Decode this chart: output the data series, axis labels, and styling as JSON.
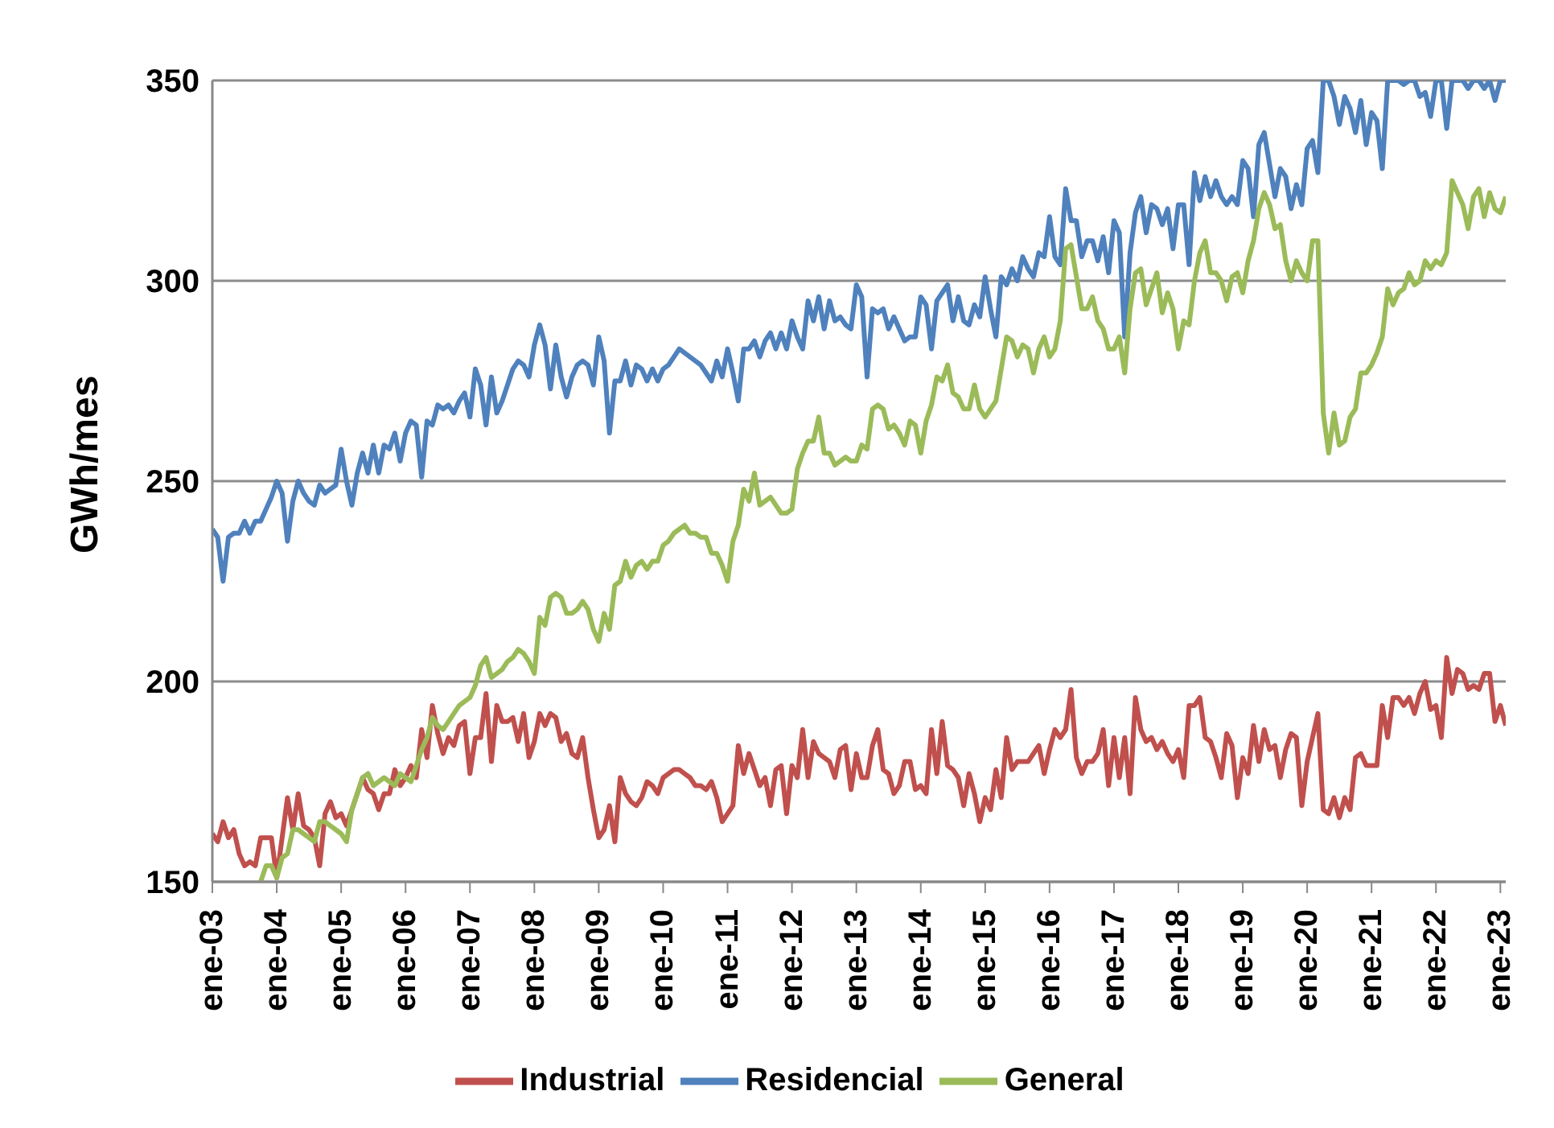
{
  "chart_data": {
    "type": "line",
    "ylabel": "GWh/mes",
    "legend": "bottom",
    "grid": "y",
    "marker": "none",
    "line_style": "solid",
    "xlim": [
      "2003-01",
      "2023-02"
    ],
    "ylim": [
      150,
      350
    ],
    "yticks": [
      150,
      200,
      250,
      300,
      350
    ],
    "xticks": [
      {
        "value": "2003-01",
        "label": "ene-03"
      },
      {
        "value": "2004-01",
        "label": "ene-04"
      },
      {
        "value": "2005-01",
        "label": "ene-05"
      },
      {
        "value": "2006-01",
        "label": "ene-06"
      },
      {
        "value": "2007-01",
        "label": "ene-07"
      },
      {
        "value": "2008-01",
        "label": "ene-08"
      },
      {
        "value": "2009-01",
        "label": "ene-09"
      },
      {
        "value": "2010-01",
        "label": "ene-10"
      },
      {
        "value": "2011-01",
        "label": "ene-11"
      },
      {
        "value": "2012-01",
        "label": "ene-12"
      },
      {
        "value": "2013-01",
        "label": "ene-13"
      },
      {
        "value": "2014-01",
        "label": "ene-14"
      },
      {
        "value": "2015-01",
        "label": "ene-15"
      },
      {
        "value": "2016-01",
        "label": "ene-16"
      },
      {
        "value": "2017-01",
        "label": "ene-17"
      },
      {
        "value": "2018-01",
        "label": "ene-18"
      },
      {
        "value": "2019-01",
        "label": "ene-19"
      },
      {
        "value": "2020-01",
        "label": "ene-20"
      },
      {
        "value": "2021-01",
        "label": "ene-21"
      },
      {
        "value": "2022-01",
        "label": "ene-22"
      },
      {
        "value": "2023-01",
        "label": "ene-23"
      }
    ],
    "x": [
      "2003-01",
      "2003-02",
      "2003-03",
      "2003-04",
      "2003-05",
      "2003-06",
      "2003-07",
      "2003-08",
      "2003-09",
      "2003-10",
      "2003-11",
      "2003-12",
      "2004-01",
      "2004-02",
      "2004-03",
      "2004-04",
      "2004-05",
      "2004-06",
      "2004-07",
      "2004-08",
      "2004-09",
      "2004-10",
      "2004-11",
      "2004-12",
      "2005-01",
      "2005-02",
      "2005-03",
      "2005-04",
      "2005-05",
      "2005-06",
      "2005-07",
      "2005-08",
      "2005-09",
      "2005-10",
      "2005-11",
      "2005-12",
      "2006-01",
      "2006-02",
      "2006-03",
      "2006-04",
      "2006-05",
      "2006-06",
      "2006-07",
      "2006-08",
      "2006-09",
      "2006-10",
      "2006-11",
      "2006-12",
      "2007-01",
      "2007-02",
      "2007-03",
      "2007-04",
      "2007-05",
      "2007-06",
      "2007-07",
      "2007-08",
      "2007-09",
      "2007-10",
      "2007-11",
      "2007-12",
      "2008-01",
      "2008-02",
      "2008-03",
      "2008-04",
      "2008-05",
      "2008-06",
      "2008-07",
      "2008-08",
      "2008-09",
      "2008-10",
      "2008-11",
      "2008-12",
      "2009-01",
      "2009-02",
      "2009-03",
      "2009-04",
      "2009-05",
      "2009-06",
      "2009-07",
      "2009-08",
      "2009-09",
      "2009-10",
      "2009-11",
      "2009-12",
      "2010-01",
      "2010-02",
      "2010-03",
      "2010-04",
      "2010-05",
      "2010-06",
      "2010-07",
      "2010-08",
      "2010-09",
      "2010-10",
      "2010-11",
      "2010-12",
      "2011-01",
      "2011-02",
      "2011-03",
      "2011-04",
      "2011-05",
      "2011-06",
      "2011-07",
      "2011-08",
      "2011-09",
      "2011-10",
      "2011-11",
      "2011-12",
      "2012-01",
      "2012-02",
      "2012-03",
      "2012-04",
      "2012-05",
      "2012-06",
      "2012-07",
      "2012-08",
      "2012-09",
      "2012-10",
      "2012-11",
      "2012-12",
      "2013-01",
      "2013-02",
      "2013-03",
      "2013-04",
      "2013-05",
      "2013-06",
      "2013-07",
      "2013-08",
      "2013-09",
      "2013-10",
      "2013-11",
      "2013-12",
      "2014-01",
      "2014-02",
      "2014-03",
      "2014-04",
      "2014-05",
      "2014-06",
      "2014-07",
      "2014-08",
      "2014-09",
      "2014-10",
      "2014-11",
      "2014-12",
      "2015-01",
      "2015-02",
      "2015-03",
      "2015-04",
      "2015-05",
      "2015-06",
      "2015-07",
      "2015-08",
      "2015-09",
      "2015-10",
      "2015-11",
      "2015-12",
      "2016-01",
      "2016-02",
      "2016-03",
      "2016-04",
      "2016-05",
      "2016-06",
      "2016-07",
      "2016-08",
      "2016-09",
      "2016-10",
      "2016-11",
      "2016-12",
      "2017-01",
      "2017-02",
      "2017-03",
      "2017-04",
      "2017-05",
      "2017-06",
      "2017-07",
      "2017-08",
      "2017-09",
      "2017-10",
      "2017-11",
      "2017-12",
      "2018-01",
      "2018-02",
      "2018-03",
      "2018-04",
      "2018-05",
      "2018-06",
      "2018-07",
      "2018-08",
      "2018-09",
      "2018-10",
      "2018-11",
      "2018-12",
      "2019-01",
      "2019-02",
      "2019-03",
      "2019-04",
      "2019-05",
      "2019-06",
      "2019-07",
      "2019-08",
      "2019-09",
      "2019-10",
      "2019-11",
      "2019-12",
      "2020-01",
      "2020-02",
      "2020-03",
      "2020-04",
      "2020-05",
      "2020-06",
      "2020-07",
      "2020-08",
      "2020-09",
      "2020-10",
      "2020-11",
      "2020-12",
      "2021-01",
      "2021-02",
      "2021-03",
      "2021-04",
      "2021-05",
      "2021-06",
      "2021-07",
      "2021-08",
      "2021-09",
      "2021-10",
      "2021-11",
      "2021-12",
      "2022-01",
      "2022-02",
      "2022-03",
      "2022-04",
      "2022-05",
      "2022-06",
      "2022-07",
      "2022-08",
      "2022-09",
      "2022-10",
      "2022-11",
      "2022-12",
      "2023-01",
      "2023-02"
    ],
    "series": [
      {
        "name": "Industrial",
        "color": "#c0504d",
        "values": [
          162,
          160,
          165,
          161,
          163,
          157,
          154,
          155,
          154,
          161,
          161,
          161,
          151,
          161,
          171,
          163,
          172,
          164,
          163,
          161,
          154,
          167,
          170,
          166,
          167,
          164,
          168,
          172,
          176,
          173,
          172,
          168,
          172,
          172,
          178,
          174,
          176,
          179,
          176,
          188,
          181,
          194,
          187,
          182,
          186,
          184,
          189,
          190,
          177,
          186,
          186,
          197,
          180,
          194,
          190,
          190,
          191,
          185,
          192,
          181,
          185,
          192,
          189,
          192,
          191,
          185,
          187,
          182,
          181,
          186,
          176,
          168,
          161,
          163,
          169,
          160,
          176,
          172,
          170,
          169,
          171,
          175,
          174,
          172,
          176,
          177,
          178,
          178,
          177,
          176,
          174,
          174,
          173,
          175,
          171,
          165,
          167,
          169,
          184,
          177,
          182,
          178,
          174,
          176,
          169,
          178,
          179,
          167,
          179,
          176,
          188,
          176,
          185,
          182,
          181,
          180,
          176,
          183,
          184,
          173,
          182,
          176,
          176,
          184,
          188,
          178,
          177,
          172,
          174,
          180,
          180,
          173,
          174,
          172,
          188,
          177,
          190,
          179,
          178,
          176,
          169,
          177,
          172,
          165,
          171,
          168,
          178,
          171,
          186,
          178,
          180,
          180,
          180,
          182,
          184,
          177,
          183,
          188,
          186,
          188,
          198,
          181,
          177,
          180,
          180,
          182,
          188,
          174,
          186,
          176,
          186,
          172,
          196,
          188,
          185,
          186,
          183,
          185,
          182,
          180,
          183,
          176,
          194,
          194,
          196,
          186,
          185,
          181,
          176,
          187,
          184,
          171,
          181,
          177,
          189,
          180,
          188,
          183,
          184,
          176,
          183,
          187,
          186,
          169,
          180,
          186,
          192,
          168,
          167,
          171,
          166,
          171,
          168,
          181,
          182,
          179,
          179,
          179,
          194,
          186,
          196,
          196,
          194,
          196,
          192,
          197,
          200,
          193,
          194,
          186,
          206,
          197,
          203,
          202,
          198,
          199,
          198,
          202,
          202,
          190,
          194,
          189
        ]
      },
      {
        "name": "Residencial",
        "color": "#4f81bd",
        "values": [
          238,
          236,
          225,
          236,
          237,
          237,
          240,
          237,
          240,
          240,
          243,
          246,
          250,
          247,
          235,
          245,
          250,
          247,
          245,
          244,
          249,
          247,
          248,
          249,
          258,
          250,
          244,
          252,
          257,
          252,
          259,
          252,
          259,
          258,
          262,
          255,
          262,
          265,
          264,
          251,
          265,
          264,
          269,
          268,
          269,
          267,
          270,
          272,
          266,
          278,
          274,
          264,
          276,
          267,
          270,
          274,
          278,
          280,
          279,
          276,
          284,
          289,
          284,
          273,
          284,
          276,
          271,
          276,
          279,
          280,
          279,
          274,
          286,
          280,
          262,
          275,
          275,
          280,
          274,
          279,
          278,
          275,
          278,
          275,
          278,
          279,
          281,
          283,
          282,
          281,
          280,
          279,
          277,
          275,
          280,
          276,
          283,
          277,
          270,
          283,
          283,
          285,
          281,
          285,
          287,
          283,
          287,
          283,
          290,
          286,
          283,
          295,
          290,
          296,
          288,
          295,
          290,
          291,
          289,
          288,
          299,
          296,
          276,
          293,
          292,
          293,
          288,
          291,
          288,
          285,
          286,
          286,
          296,
          294,
          283,
          295,
          297,
          299,
          290,
          296,
          290,
          289,
          294,
          291,
          301,
          293,
          286,
          301,
          299,
          303,
          300,
          306,
          303,
          301,
          307,
          306,
          316,
          306,
          304,
          323,
          315,
          315,
          306,
          310,
          310,
          305,
          311,
          302,
          315,
          312,
          286,
          307,
          317,
          321,
          312,
          319,
          318,
          314,
          318,
          308,
          319,
          319,
          304,
          327,
          320,
          326,
          321,
          325,
          321,
          319,
          321,
          319,
          330,
          328,
          316,
          334,
          337,
          329,
          321,
          328,
          326,
          318,
          324,
          319,
          333,
          335,
          327,
          350,
          350,
          346,
          339,
          346,
          343,
          337,
          345,
          334,
          342,
          340,
          328,
          350,
          350,
          350,
          349,
          350,
          350,
          346,
          347,
          341,
          350,
          350,
          338,
          350,
          350,
          350,
          348,
          350,
          350,
          348,
          350,
          345,
          350,
          350
        ]
      },
      {
        "name": "General",
        "color": "#9bbb59",
        "values": [
          null,
          null,
          null,
          null,
          null,
          null,
          null,
          null,
          null,
          150,
          154,
          154,
          151,
          156,
          157,
          163,
          163,
          162,
          161,
          160,
          165,
          165,
          164,
          163,
          162,
          160,
          168,
          172,
          176,
          177,
          174,
          175,
          176,
          175,
          174,
          177,
          176,
          175,
          179,
          183,
          186,
          191,
          189,
          188,
          190,
          192,
          194,
          195,
          196,
          199,
          204,
          206,
          201,
          202,
          203,
          205,
          206,
          208,
          207,
          205,
          202,
          216,
          214,
          221,
          222,
          221,
          217,
          217,
          218,
          220,
          218,
          213,
          210,
          217,
          213,
          224,
          225,
          230,
          226,
          229,
          230,
          228,
          230,
          230,
          234,
          235,
          237,
          238,
          239,
          237,
          237,
          236,
          236,
          232,
          232,
          229,
          225,
          235,
          239,
          248,
          245,
          252,
          244,
          245,
          246,
          244,
          242,
          242,
          243,
          253,
          257,
          260,
          260,
          266,
          257,
          257,
          254,
          255,
          256,
          255,
          255,
          259,
          258,
          268,
          269,
          268,
          263,
          264,
          262,
          259,
          265,
          264,
          257,
          265,
          269,
          276,
          275,
          279,
          272,
          271,
          268,
          268,
          274,
          268,
          266,
          268,
          270,
          278,
          286,
          285,
          281,
          284,
          283,
          277,
          283,
          286,
          281,
          283,
          290,
          308,
          309,
          301,
          293,
          293,
          296,
          290,
          288,
          283,
          283,
          286,
          277,
          293,
          302,
          303,
          294,
          298,
          302,
          292,
          297,
          293,
          283,
          290,
          289,
          300,
          307,
          310,
          302,
          302,
          300,
          295,
          301,
          302,
          297,
          305,
          310,
          318,
          322,
          319,
          313,
          314,
          305,
          300,
          305,
          302,
          300,
          310,
          310,
          267,
          257,
          267,
          259,
          260,
          266,
          268,
          277,
          277,
          279,
          282,
          286,
          298,
          294,
          297,
          298,
          302,
          299,
          300,
          305,
          303,
          305,
          304,
          307,
          325,
          322,
          319,
          313,
          321,
          323,
          316,
          322,
          318,
          317,
          321
        ]
      }
    ]
  }
}
